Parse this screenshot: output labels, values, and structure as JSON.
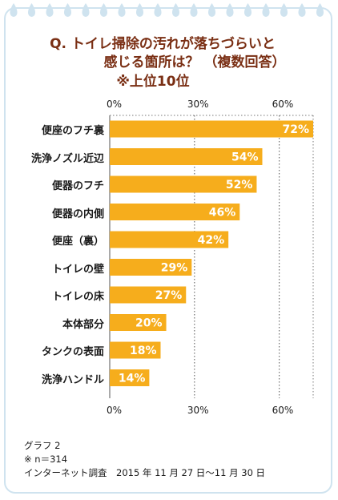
{
  "title_lines": [
    "Q. トイレ掃除の汚れが落ちづらいと",
    "感じる箇所は？ （複数回答）",
    "※上位10位"
  ],
  "chart_data": {
    "type": "bar",
    "orientation": "horizontal",
    "categories": [
      "便座のフチ裏",
      "洗浄ノズル近辺",
      "便器のフチ",
      "便器の内側",
      "便座（裏）",
      "トイレの壁",
      "トイレの床",
      "本体部分",
      "タンクの表面",
      "洗浄ハンドル"
    ],
    "values": [
      72,
      54,
      52,
      46,
      42,
      29,
      27,
      20,
      18,
      14
    ],
    "value_labels": [
      "72%",
      "54%",
      "52%",
      "46%",
      "42%",
      "29%",
      "27%",
      "20%",
      "18%",
      "14%"
    ],
    "xlim": [
      0,
      72
    ],
    "xticks": [
      0,
      30,
      60
    ],
    "xtick_labels": [
      "0%",
      "30%",
      "60%"
    ],
    "bar_color": "#f6ad1c",
    "grid": "dotted vertical at 30% and 60%"
  },
  "notes": [
    "グラフ 2",
    "※ n＝314",
    "インターネット調査　2015 年 11 月 27 日～11 月 30 日"
  ],
  "colors": {
    "title": "#7a2f14",
    "border": "#cfe3ef",
    "drops": "#cfe3ef"
  }
}
